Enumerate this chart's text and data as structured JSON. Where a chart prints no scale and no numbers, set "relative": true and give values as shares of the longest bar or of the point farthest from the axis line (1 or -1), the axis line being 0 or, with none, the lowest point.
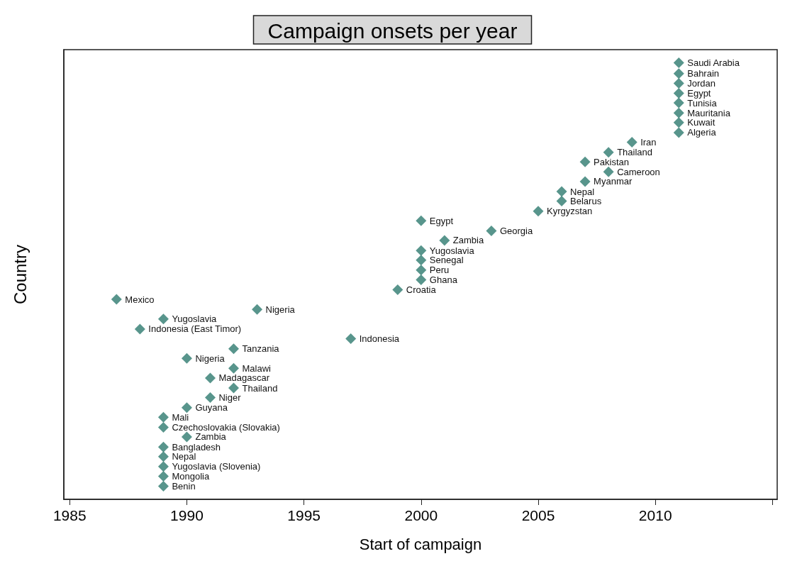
{
  "chart_data": {
    "type": "scatter",
    "title": "Campaign onsets per year",
    "xlabel": "Start of campaign",
    "ylabel": "Country",
    "relative": true,
    "marker": "diamond",
    "grid": false,
    "xlim": [
      1984.75,
      2015.2
    ],
    "xticks": [
      1985,
      1990,
      1995,
      2000,
      2005,
      2010,
      {
        "value": 2015,
        "label": null
      }
    ],
    "series": [
      {
        "color": "#2e7b6f",
        "x": [
          1989,
          1989,
          1989,
          1989,
          1989,
          1990,
          1989,
          1989,
          1990,
          1991,
          1992,
          1991,
          1992,
          1990,
          1992,
          1997,
          1988,
          1989,
          1993,
          1987,
          1999,
          2000,
          2000,
          2000,
          2000,
          2001,
          2003,
          2000,
          2005,
          2006,
          2006,
          2007,
          2008,
          2007,
          2008,
          2009,
          2011,
          2011,
          2011,
          2011,
          2011,
          2011,
          2011,
          2011
        ],
        "values": [
          0.03,
          0.053,
          0.075,
          0.098,
          0.12,
          0.143,
          0.165,
          0.188,
          0.21,
          0.233,
          0.255,
          0.278,
          0.3,
          0.323,
          0.345,
          0.368,
          0.39,
          0.413,
          0.435,
          0.458,
          0.48,
          0.503,
          0.525,
          0.548,
          0.57,
          0.593,
          0.615,
          0.638,
          0.66,
          0.683,
          0.705,
          0.728,
          0.75,
          0.773,
          0.795,
          0.818,
          0.84,
          0.863,
          0.885,
          0.908,
          0.93,
          0.953,
          0.975,
          1.0
        ]
      }
    ],
    "annotations": [
      {
        "text": "Benin",
        "x": 1989,
        "y": 0.03
      },
      {
        "text": "Mongolia",
        "x": 1989,
        "y": 0.053
      },
      {
        "text": "Yugoslavia (Slovenia)",
        "x": 1989,
        "y": 0.075
      },
      {
        "text": "Nepal",
        "x": 1989,
        "y": 0.098
      },
      {
        "text": "Bangladesh",
        "x": 1989,
        "y": 0.12
      },
      {
        "text": "Zambia",
        "x": 1990,
        "y": 0.143
      },
      {
        "text": "Czechoslovakia (Slovakia)",
        "x": 1989,
        "y": 0.165
      },
      {
        "text": "Mali",
        "x": 1989,
        "y": 0.188
      },
      {
        "text": "Guyana",
        "x": 1990,
        "y": 0.21
      },
      {
        "text": "Niger",
        "x": 1991,
        "y": 0.233
      },
      {
        "text": "Thailand",
        "x": 1992,
        "y": 0.255
      },
      {
        "text": "Madagascar",
        "x": 1991,
        "y": 0.278
      },
      {
        "text": "Malawi",
        "x": 1992,
        "y": 0.3
      },
      {
        "text": "Nigeria",
        "x": 1990,
        "y": 0.323
      },
      {
        "text": "Tanzania",
        "x": 1992,
        "y": 0.345
      },
      {
        "text": "Indonesia",
        "x": 1997,
        "y": 0.368
      },
      {
        "text": "Indonesia (East Timor)",
        "x": 1988,
        "y": 0.39
      },
      {
        "text": "Yugoslavia",
        "x": 1989,
        "y": 0.413
      },
      {
        "text": "Nigeria",
        "x": 1993,
        "y": 0.435
      },
      {
        "text": "Mexico",
        "x": 1987,
        "y": 0.458
      },
      {
        "text": "Croatia",
        "x": 1999,
        "y": 0.48
      },
      {
        "text": "Ghana",
        "x": 2000,
        "y": 0.503
      },
      {
        "text": "Peru",
        "x": 2000,
        "y": 0.525
      },
      {
        "text": "Senegal",
        "x": 2000,
        "y": 0.548
      },
      {
        "text": "Yugoslavia",
        "x": 2000,
        "y": 0.57
      },
      {
        "text": "Zambia",
        "x": 2001,
        "y": 0.593
      },
      {
        "text": "Georgia",
        "x": 2003,
        "y": 0.615
      },
      {
        "text": "Egypt",
        "x": 2000,
        "y": 0.638
      },
      {
        "text": "Kyrgyzstan",
        "x": 2005,
        "y": 0.66
      },
      {
        "text": "Belarus",
        "x": 2006,
        "y": 0.683
      },
      {
        "text": "Nepal",
        "x": 2006,
        "y": 0.705
      },
      {
        "text": "Myanmar",
        "x": 2007,
        "y": 0.728
      },
      {
        "text": "Cameroon",
        "x": 2008,
        "y": 0.75
      },
      {
        "text": "Pakistan",
        "x": 2007,
        "y": 0.773
      },
      {
        "text": "Thailand",
        "x": 2008,
        "y": 0.795
      },
      {
        "text": "Iran",
        "x": 2009,
        "y": 0.818
      },
      {
        "text": "Algeria",
        "x": 2011,
        "y": 0.84
      },
      {
        "text": "Kuwait",
        "x": 2011,
        "y": 0.863
      },
      {
        "text": "Mauritania",
        "x": 2011,
        "y": 0.885
      },
      {
        "text": "Tunisia",
        "x": 2011,
        "y": 0.908
      },
      {
        "text": "Egypt",
        "x": 2011,
        "y": 0.93
      },
      {
        "text": "Jordan",
        "x": 2011,
        "y": 0.953
      },
      {
        "text": "Bahrain",
        "x": 2011,
        "y": 0.975
      },
      {
        "text": "Saudi Arabia",
        "x": 2011,
        "y": 1.0
      }
    ]
  }
}
